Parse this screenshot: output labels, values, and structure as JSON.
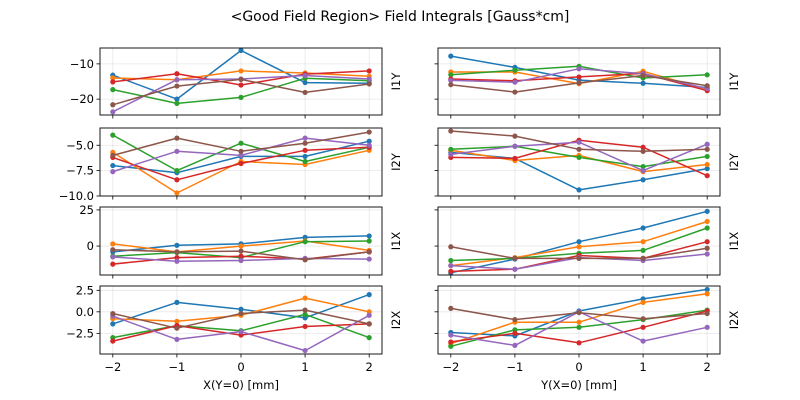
{
  "figure": {
    "title": "<Good Field Region> Field Integrals [Gauss*cm]"
  },
  "series_colors": [
    "#1f77b4",
    "#ff7f0e",
    "#2ca02c",
    "#d62728",
    "#9467bd",
    "#8c564b"
  ],
  "chart_data": [
    {
      "type": "line",
      "panel": "left-row1",
      "ylabel": "I1Y",
      "xlabel": "",
      "x": [
        -2,
        -1,
        0,
        1,
        2
      ],
      "xlim": [
        -2.2,
        2.2
      ],
      "ylim": [
        -24.5,
        -5.5
      ],
      "yticks": [
        -10,
        -20
      ],
      "ytick_labels": [
        "−10",
        "−20"
      ],
      "show_yticklabels": true,
      "grid": true,
      "series": [
        {
          "name": "s1",
          "values": [
            -13.2,
            -20.0,
            -6.2,
            -15.3,
            -15.5
          ]
        },
        {
          "name": "s2",
          "values": [
            -14.0,
            -14.5,
            -12.0,
            -12.6,
            -13.5
          ]
        },
        {
          "name": "s3",
          "values": [
            -17.3,
            -21.2,
            -19.5,
            -14.1,
            -14.8
          ]
        },
        {
          "name": "s4",
          "values": [
            -15.1,
            -12.8,
            -16.0,
            -12.9,
            -12.0
          ]
        },
        {
          "name": "s5",
          "values": [
            -23.6,
            -14.5,
            -14.3,
            -13.3,
            -14.3
          ]
        },
        {
          "name": "s6",
          "values": [
            -21.6,
            -16.3,
            -14.4,
            -18.1,
            -15.7
          ]
        }
      ]
    },
    {
      "type": "line",
      "panel": "right-row1",
      "ylabel": "I1Y",
      "xlabel": "",
      "x": [
        -2,
        -1,
        0,
        1,
        2
      ],
      "xlim": [
        -2.2,
        2.2
      ],
      "ylim": [
        -24.5,
        -5.5
      ],
      "yticks": [
        -10,
        -20
      ],
      "ytick_labels": [
        "",
        ""
      ],
      "show_yticklabels": false,
      "grid": true,
      "series": [
        {
          "name": "s1",
          "values": [
            -7.8,
            -11.0,
            -14.6,
            -15.5,
            -16.7
          ]
        },
        {
          "name": "s2",
          "values": [
            -12.3,
            -12.3,
            -15.6,
            -12.1,
            -17.2
          ]
        },
        {
          "name": "s3",
          "values": [
            -13.1,
            -11.8,
            -10.7,
            -14.0,
            -13.1
          ]
        },
        {
          "name": "s4",
          "values": [
            -14.3,
            -14.8,
            -13.7,
            -12.7,
            -17.6
          ]
        },
        {
          "name": "s5",
          "values": [
            -14.7,
            -15.2,
            -11.4,
            -12.8,
            -17.0
          ]
        },
        {
          "name": "s6",
          "values": [
            -15.9,
            -18.0,
            -15.4,
            -13.3,
            -16.2
          ]
        }
      ]
    },
    {
      "type": "line",
      "panel": "left-row2",
      "ylabel": "I2Y",
      "xlabel": "",
      "x": [
        -2,
        -1,
        0,
        1,
        2
      ],
      "xlim": [
        -2.2,
        2.2
      ],
      "ylim": [
        -10.0,
        -3.3
      ],
      "yticks": [
        -5.0,
        -7.5,
        -10.0
      ],
      "ytick_labels": [
        "−5.0",
        "−7.5",
        "−10.0"
      ],
      "show_yticklabels": true,
      "grid": true,
      "series": [
        {
          "name": "s1",
          "values": [
            -7.0,
            -7.7,
            -6.1,
            -6.1,
            -4.6
          ]
        },
        {
          "name": "s2",
          "values": [
            -5.7,
            -9.7,
            -6.6,
            -6.9,
            -5.5
          ]
        },
        {
          "name": "s3",
          "values": [
            -4.0,
            -7.5,
            -4.8,
            -6.6,
            -5.2
          ]
        },
        {
          "name": "s4",
          "values": [
            -6.2,
            -8.4,
            -6.8,
            -5.5,
            -5.2
          ]
        },
        {
          "name": "s5",
          "values": [
            -7.6,
            -5.6,
            -6.0,
            -4.3,
            -5.0
          ]
        },
        {
          "name": "s6",
          "values": [
            -6.0,
            -4.3,
            -5.6,
            -4.8,
            -3.7
          ]
        }
      ]
    },
    {
      "type": "line",
      "panel": "right-row2",
      "ylabel": "I2Y",
      "xlabel": "",
      "x": [
        -2,
        -1,
        0,
        1,
        2
      ],
      "xlim": [
        -2.2,
        2.2
      ],
      "ylim": [
        -10.0,
        -3.3
      ],
      "yticks": [
        -5.0,
        -7.5,
        -10.0
      ],
      "ytick_labels": [
        "",
        "",
        ""
      ],
      "show_yticklabels": false,
      "grid": true,
      "series": [
        {
          "name": "s1",
          "values": [
            -5.7,
            -6.3,
            -9.4,
            -8.4,
            -7.3
          ]
        },
        {
          "name": "s2",
          "values": [
            -5.5,
            -6.5,
            -6.0,
            -7.6,
            -6.9
          ]
        },
        {
          "name": "s3",
          "values": [
            -5.4,
            -5.1,
            -6.2,
            -7.1,
            -6.1
          ]
        },
        {
          "name": "s4",
          "values": [
            -6.2,
            -6.3,
            -4.5,
            -5.2,
            -8.0
          ]
        },
        {
          "name": "s5",
          "values": [
            -5.9,
            -5.1,
            -4.7,
            -7.5,
            -4.9
          ]
        },
        {
          "name": "s6",
          "values": [
            -3.6,
            -4.1,
            -5.4,
            -5.6,
            -5.4
          ]
        }
      ]
    },
    {
      "type": "line",
      "panel": "left-row3",
      "ylabel": "I1X",
      "xlabel": "",
      "x": [
        -2,
        -1,
        0,
        1,
        2
      ],
      "xlim": [
        -2.2,
        2.2
      ],
      "ylim": [
        -20,
        27
      ],
      "yticks": [
        25,
        0
      ],
      "ytick_labels": [
        "25",
        "0"
      ],
      "show_yticklabels": true,
      "grid": true,
      "series": [
        {
          "name": "s1",
          "values": [
            -4,
            0.5,
            1.5,
            6,
            7
          ]
        },
        {
          "name": "s2",
          "values": [
            1.5,
            -4,
            0,
            3.5,
            -3
          ]
        },
        {
          "name": "s3",
          "values": [
            -7,
            -4.5,
            -8,
            3,
            3.5
          ]
        },
        {
          "name": "s4",
          "values": [
            -12.5,
            -8,
            -7,
            -9,
            -4
          ]
        },
        {
          "name": "s5",
          "values": [
            -7.5,
            -10.5,
            -10,
            -8.5,
            -9
          ]
        },
        {
          "name": "s6",
          "values": [
            -2.5,
            -4,
            -3.5,
            -9.5,
            -4
          ]
        }
      ]
    },
    {
      "type": "line",
      "panel": "right-row3",
      "ylabel": "I1X",
      "xlabel": "",
      "x": [
        -2,
        -1,
        0,
        1,
        2
      ],
      "xlim": [
        -2.2,
        2.2
      ],
      "ylim": [
        -20,
        27
      ],
      "yticks": [
        25,
        0
      ],
      "ytick_labels": [
        "",
        ""
      ],
      "show_yticklabels": false,
      "grid": true,
      "series": [
        {
          "name": "s1",
          "values": [
            -18.5,
            -9,
            3,
            12.5,
            24
          ]
        },
        {
          "name": "s2",
          "values": [
            -13.5,
            -8,
            -0.5,
            3,
            17
          ]
        },
        {
          "name": "s3",
          "values": [
            -10,
            -8.5,
            -5,
            -3,
            12.5
          ]
        },
        {
          "name": "s4",
          "values": [
            -17.5,
            -16,
            -6.5,
            -8.5,
            3
          ]
        },
        {
          "name": "s5",
          "values": [
            -13.5,
            -16,
            -8,
            -10,
            -5.5
          ]
        },
        {
          "name": "s6",
          "values": [
            -0.5,
            -8.5,
            -8.5,
            -8.5,
            -1.5
          ]
        }
      ]
    },
    {
      "type": "line",
      "panel": "left-row4",
      "ylabel": "I2X",
      "xlabel": "X(Y=0) [mm]",
      "x": [
        -2,
        -1,
        0,
        1,
        2
      ],
      "xlim": [
        -2.2,
        2.2
      ],
      "ylim": [
        -4.9,
        3.0
      ],
      "xticks": [
        -2,
        -1,
        0,
        1,
        2
      ],
      "xtick_labels": [
        "−2",
        "−1",
        "0",
        "1",
        "2"
      ],
      "yticks": [
        2.5,
        0.0,
        -2.5
      ],
      "ytick_labels": [
        "2.5",
        "0.0",
        "−2.5"
      ],
      "show_yticklabels": true,
      "grid": true,
      "series": [
        {
          "name": "s1",
          "values": [
            -1.4,
            1.1,
            0.3,
            -0.7,
            2.0
          ]
        },
        {
          "name": "s2",
          "values": [
            -0.8,
            -1.1,
            -0.4,
            1.6,
            0.0
          ]
        },
        {
          "name": "s3",
          "values": [
            -3.0,
            -1.6,
            -2.2,
            -0.3,
            -3.0
          ]
        },
        {
          "name": "s4",
          "values": [
            -3.4,
            -1.6,
            -2.7,
            -1.7,
            -1.4
          ]
        },
        {
          "name": "s5",
          "values": [
            -0.5,
            -3.2,
            -2.3,
            -4.5,
            -0.4
          ]
        },
        {
          "name": "s6",
          "values": [
            -0.2,
            -1.9,
            -0.2,
            0.2,
            -1.4
          ]
        }
      ]
    },
    {
      "type": "line",
      "panel": "right-row4",
      "ylabel": "I2X",
      "xlabel": "Y(X=0) [mm]",
      "x": [
        -2,
        -1,
        0,
        1,
        2
      ],
      "xlim": [
        -2.2,
        2.2
      ],
      "ylim": [
        -4.9,
        3.0
      ],
      "xticks": [
        -2,
        -1,
        0,
        1,
        2
      ],
      "xtick_labels": [
        "−2",
        "−1",
        "0",
        "1",
        "2"
      ],
      "yticks": [
        2.5,
        0.0,
        -2.5
      ],
      "ytick_labels": [
        "",
        "",
        ""
      ],
      "show_yticklabels": false,
      "grid": true,
      "series": [
        {
          "name": "s1",
          "values": [
            -2.4,
            -2.8,
            0.1,
            1.5,
            2.6
          ]
        },
        {
          "name": "s2",
          "values": [
            -3.7,
            -1.2,
            -1.2,
            1.1,
            2.1
          ]
        },
        {
          "name": "s3",
          "values": [
            -4.0,
            -2.1,
            -1.8,
            -0.9,
            0.2
          ]
        },
        {
          "name": "s4",
          "values": [
            -3.5,
            -2.5,
            -3.6,
            -1.8,
            0.1
          ]
        },
        {
          "name": "s5",
          "values": [
            -2.7,
            -3.9,
            0.0,
            -3.4,
            -1.8
          ]
        },
        {
          "name": "s6",
          "values": [
            0.4,
            -0.9,
            -0.1,
            -0.8,
            -0.2
          ]
        }
      ]
    }
  ]
}
